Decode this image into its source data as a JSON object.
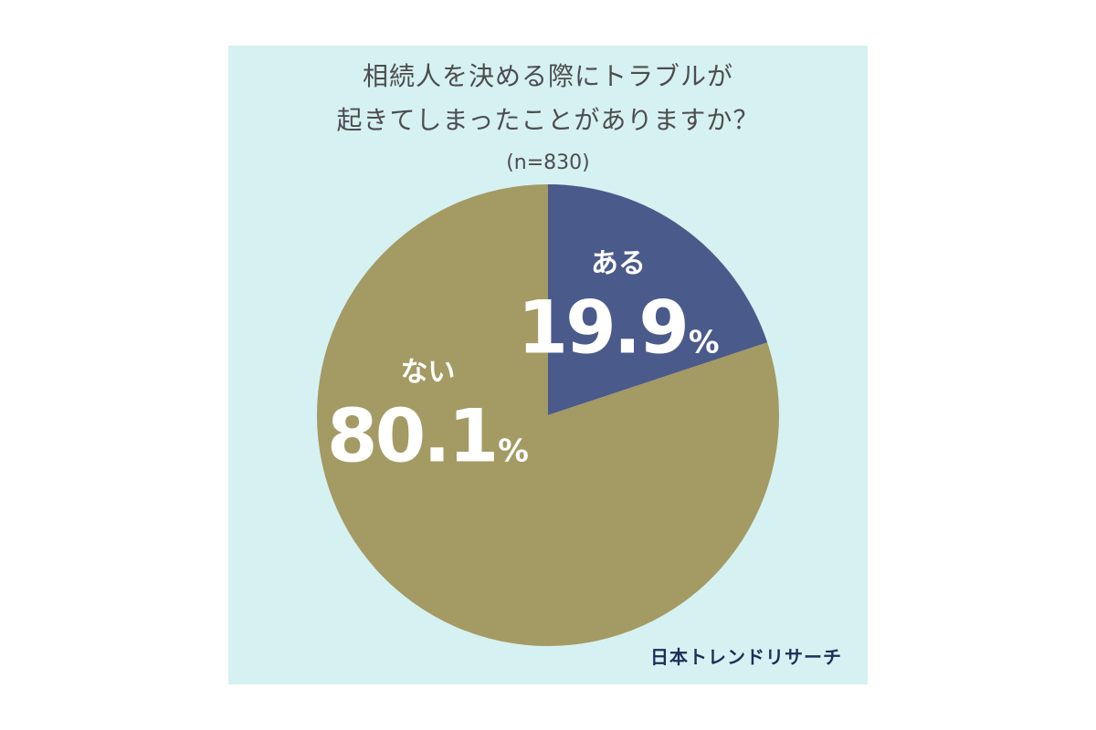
{
  "chart_data": {
    "type": "pie",
    "title_lines": [
      "相続人を決める際にトラブルが",
      "起きてしまったことがありますか？"
    ],
    "sample_size": "(n=830)",
    "slices": [
      {
        "label": "ある",
        "value": 19.9,
        "value_text": "19.9",
        "unit": "%",
        "color": "#4a5a8a"
      },
      {
        "label": "ない",
        "value": 80.1,
        "value_text": "80.1",
        "unit": "%",
        "color": "#a49a63"
      }
    ],
    "start": "12 o'clock",
    "direction": "clockwise"
  },
  "brand": "日本トレンドリサーチ",
  "colors": {
    "background": "#d6f1f2",
    "title": "#4d4d4d",
    "brand": "#1a2e5a"
  }
}
